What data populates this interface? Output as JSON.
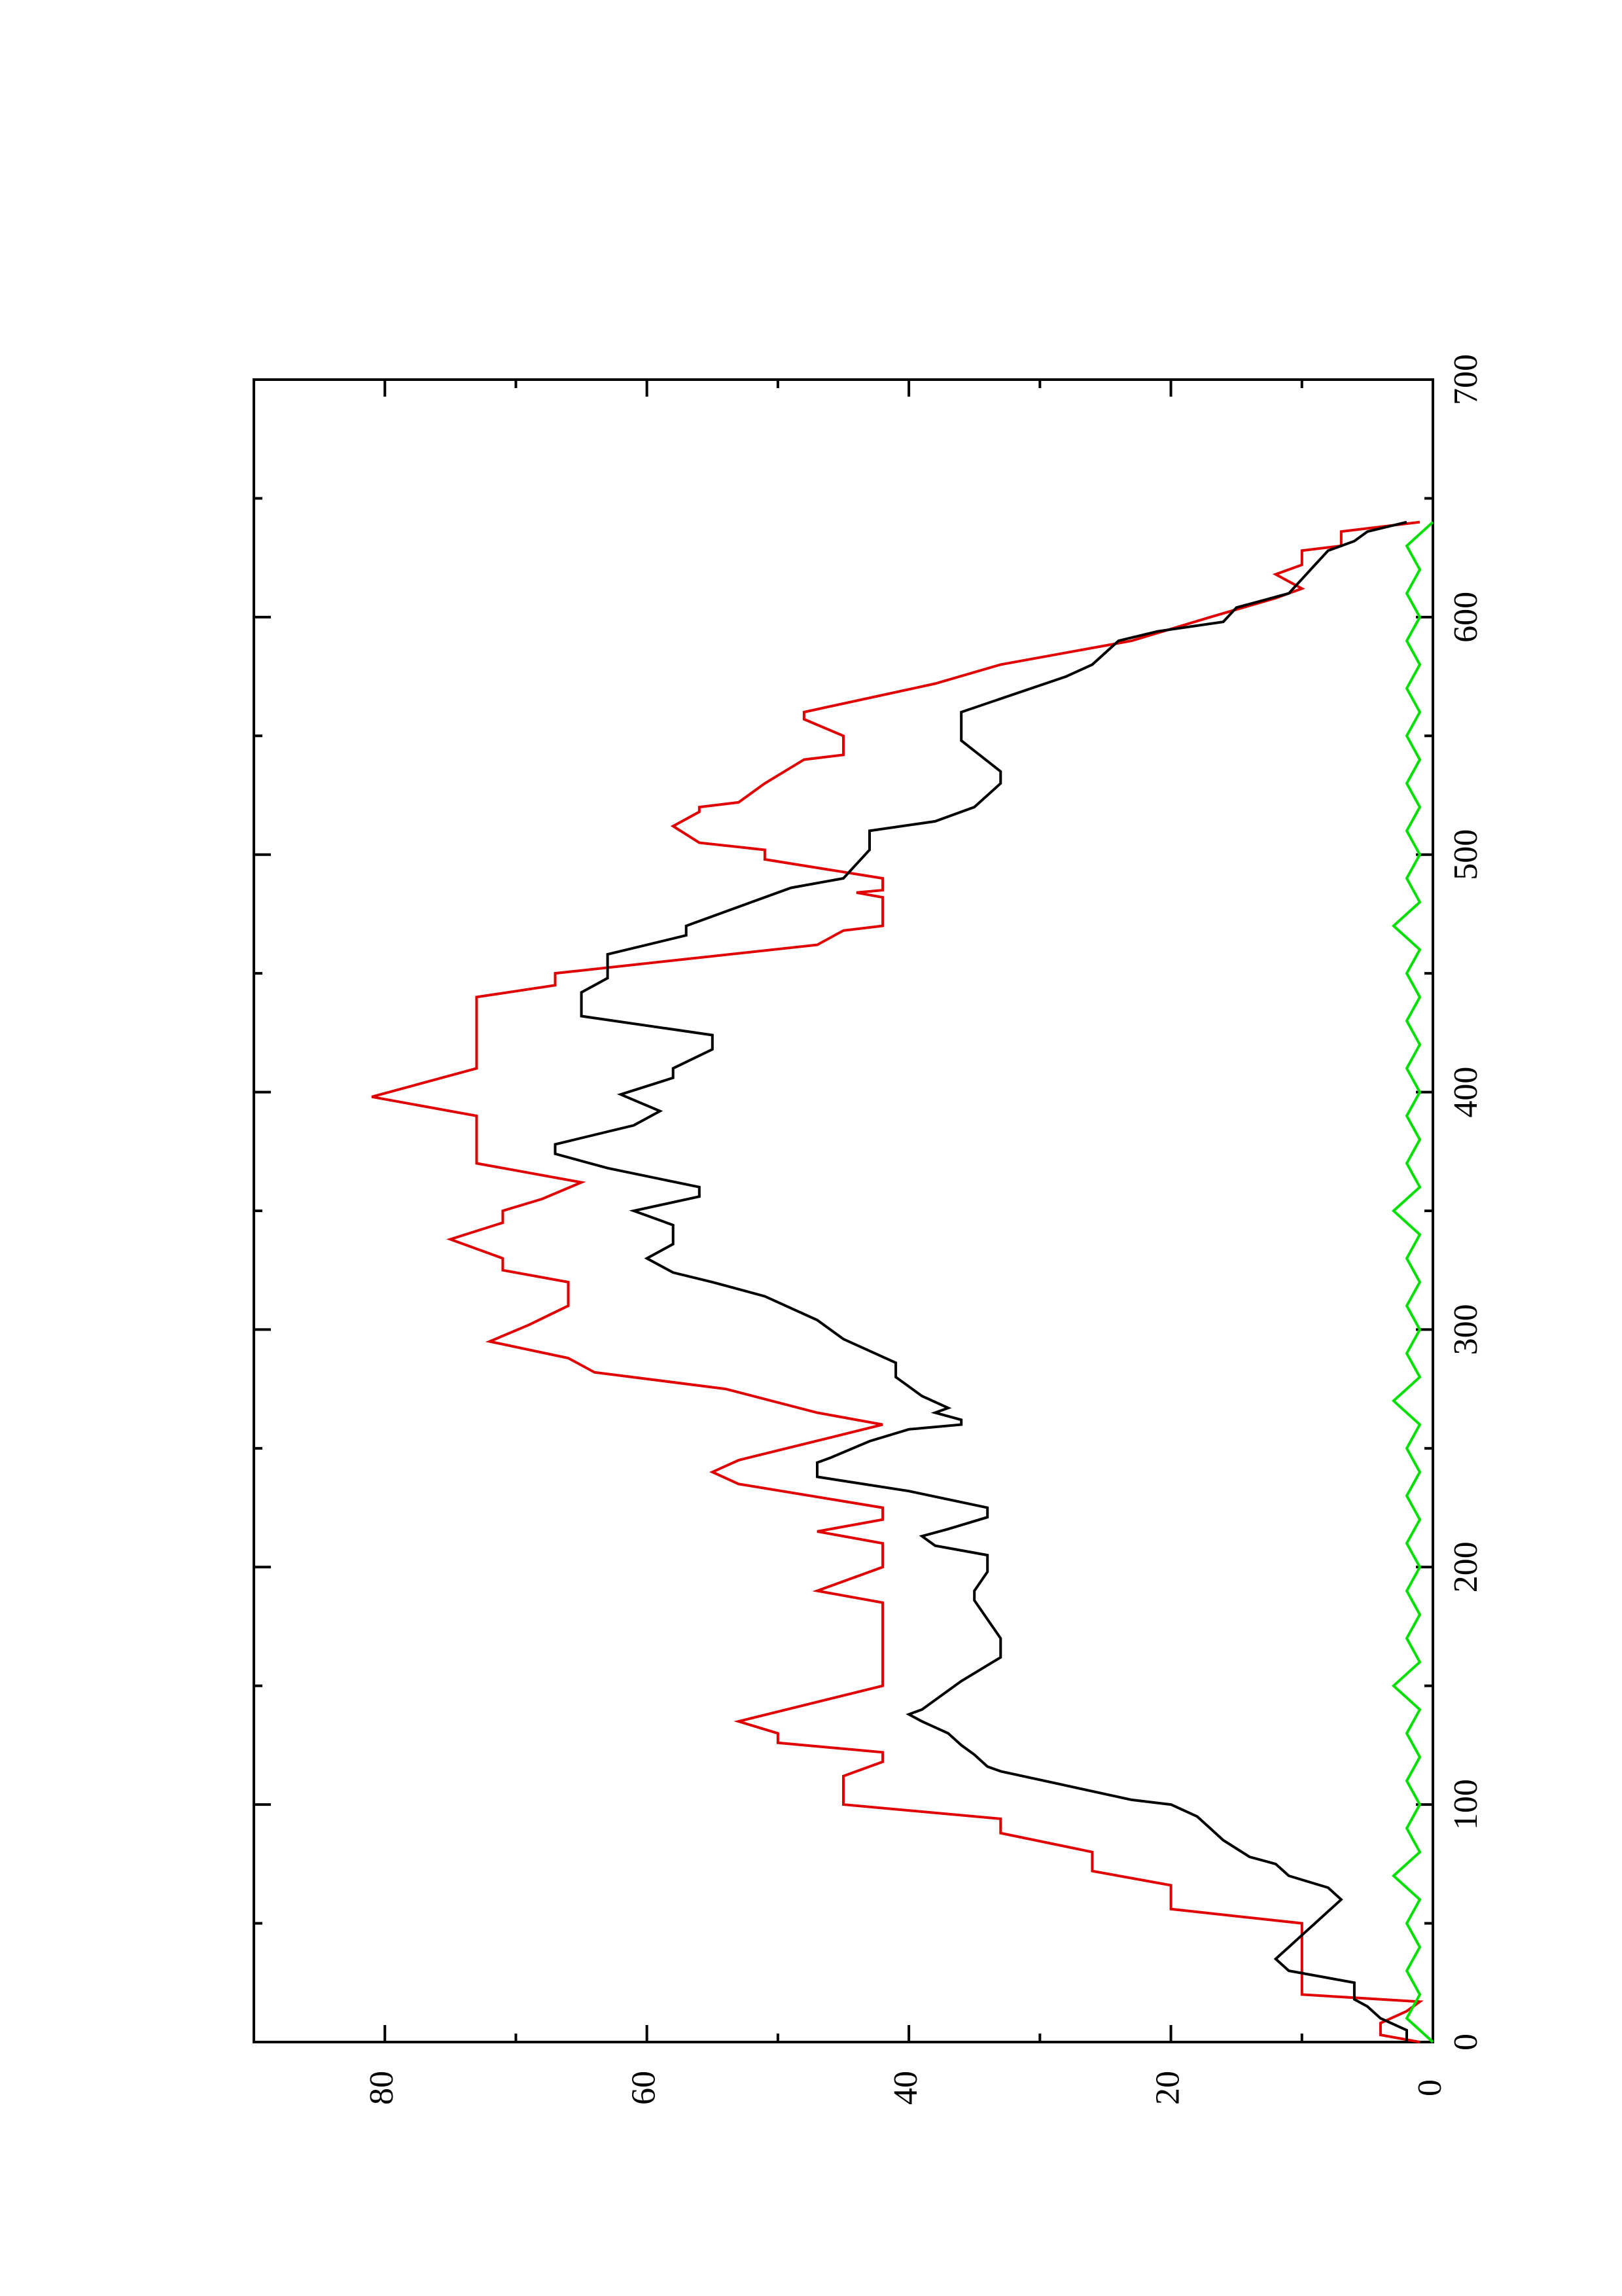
{
  "chart_data": {
    "type": "line",
    "title": "",
    "xlabel": "",
    "ylabel": "",
    "orientation": "rotated 90 degrees counter-clockwise (landscape plot on portrait page)",
    "xlim": [
      0,
      700
    ],
    "ylim": [
      0,
      90
    ],
    "x_ticks": [
      "0",
      "100",
      "200",
      "300",
      "400",
      "500",
      "600",
      "700"
    ],
    "y_ticks": [
      "0",
      "20",
      "40",
      "60",
      "80"
    ],
    "grid": false,
    "legend": "none",
    "series": [
      {
        "color": "#e00000",
        "points": [
          [
            0,
            1
          ],
          [
            3,
            4
          ],
          [
            8,
            4
          ],
          [
            13,
            2
          ],
          [
            17,
            1
          ],
          [
            20,
            10
          ],
          [
            50,
            10
          ],
          [
            56,
            20
          ],
          [
            66,
            20
          ],
          [
            72,
            26
          ],
          [
            80,
            26
          ],
          [
            88,
            33
          ],
          [
            94,
            33
          ],
          [
            100,
            45
          ],
          [
            112,
            45
          ],
          [
            118,
            42
          ],
          [
            122,
            42
          ],
          [
            126,
            50
          ],
          [
            130,
            50
          ],
          [
            135,
            53
          ],
          [
            150,
            42
          ],
          [
            185,
            42
          ],
          [
            190,
            47
          ],
          [
            200,
            42
          ],
          [
            210,
            42
          ],
          [
            215,
            47
          ],
          [
            220,
            42
          ],
          [
            225,
            42
          ],
          [
            235,
            53
          ],
          [
            240,
            55
          ],
          [
            245,
            53
          ],
          [
            260,
            42
          ],
          [
            265,
            47
          ],
          [
            275,
            54
          ],
          [
            282,
            64
          ],
          [
            288,
            66
          ],
          [
            295,
            72
          ],
          [
            302,
            69
          ],
          [
            310,
            66
          ],
          [
            320,
            66
          ],
          [
            325,
            71
          ],
          [
            330,
            71
          ],
          [
            338,
            75
          ],
          [
            345,
            71
          ],
          [
            350,
            71
          ],
          [
            355,
            68
          ],
          [
            362,
            65
          ],
          [
            370,
            73
          ],
          [
            390,
            73
          ],
          [
            398,
            81
          ],
          [
            410,
            73
          ],
          [
            440,
            73
          ],
          [
            445,
            67
          ],
          [
            450,
            67
          ],
          [
            462,
            47
          ],
          [
            468,
            45
          ],
          [
            470,
            42
          ],
          [
            482,
            42
          ],
          [
            484,
            44
          ],
          [
            485,
            42
          ],
          [
            490,
            42
          ],
          [
            498,
            51
          ],
          [
            502,
            51
          ],
          [
            505,
            56
          ],
          [
            512,
            58
          ],
          [
            518,
            56
          ],
          [
            520,
            56
          ],
          [
            522,
            53
          ],
          [
            530,
            51
          ],
          [
            540,
            48
          ],
          [
            542,
            45
          ],
          [
            550,
            45
          ],
          [
            557,
            48
          ],
          [
            560,
            48
          ],
          [
            572,
            38
          ],
          [
            580,
            33
          ],
          [
            590,
            23
          ],
          [
            595,
            20
          ],
          [
            600,
            17
          ],
          [
            608,
            12
          ],
          [
            612,
            10
          ],
          [
            618,
            12
          ],
          [
            622,
            10
          ],
          [
            628,
            10
          ],
          [
            630,
            7
          ],
          [
            636,
            7
          ],
          [
            640,
            1
          ]
        ]
      },
      {
        "color": "#000000",
        "points": [
          [
            0,
            2
          ],
          [
            5,
            2
          ],
          [
            10,
            4
          ],
          [
            15,
            5
          ],
          [
            18,
            6
          ],
          [
            25,
            6
          ],
          [
            30,
            11
          ],
          [
            35,
            12
          ],
          [
            40,
            11
          ],
          [
            45,
            10
          ],
          [
            50,
            9
          ],
          [
            55,
            8
          ],
          [
            60,
            7
          ],
          [
            65,
            8
          ],
          [
            70,
            11
          ],
          [
            75,
            12
          ],
          [
            78,
            14
          ],
          [
            85,
            16
          ],
          [
            90,
            17
          ],
          [
            95,
            18
          ],
          [
            100,
            20
          ],
          [
            102,
            23
          ],
          [
            108,
            28
          ],
          [
            114,
            33
          ],
          [
            116,
            34
          ],
          [
            121,
            35
          ],
          [
            125,
            36
          ],
          [
            130,
            37
          ],
          [
            135,
            39
          ],
          [
            138,
            40
          ],
          [
            140,
            39
          ],
          [
            152,
            36
          ],
          [
            162,
            33
          ],
          [
            170,
            33
          ],
          [
            178,
            34
          ],
          [
            186,
            35
          ],
          [
            190,
            35
          ],
          [
            198,
            34
          ],
          [
            205,
            34
          ],
          [
            209,
            38
          ],
          [
            213,
            39
          ],
          [
            216,
            37
          ],
          [
            221,
            34
          ],
          [
            225,
            34
          ],
          [
            232,
            40
          ],
          [
            238,
            47
          ],
          [
            244,
            47
          ],
          [
            246,
            46
          ],
          [
            253,
            43
          ],
          [
            258,
            40
          ],
          [
            260,
            36
          ],
          [
            262,
            36
          ],
          [
            265,
            38
          ],
          [
            267,
            37
          ],
          [
            272,
            39
          ],
          [
            280,
            41
          ],
          [
            286,
            41
          ],
          [
            296,
            45
          ],
          [
            304,
            47
          ],
          [
            314,
            51
          ],
          [
            320,
            55
          ],
          [
            324,
            58
          ],
          [
            330,
            60
          ],
          [
            336,
            58
          ],
          [
            344,
            58
          ],
          [
            350,
            61
          ],
          [
            356,
            56
          ],
          [
            360,
            56
          ],
          [
            368,
            63
          ],
          [
            374,
            67
          ],
          [
            378,
            67
          ],
          [
            386,
            61
          ],
          [
            392,
            59
          ],
          [
            399,
            62
          ],
          [
            406,
            58
          ],
          [
            410,
            58
          ],
          [
            418,
            55
          ],
          [
            424,
            55
          ],
          [
            432,
            65
          ],
          [
            442,
            65
          ],
          [
            448,
            63
          ],
          [
            453,
            63
          ],
          [
            458,
            63
          ],
          [
            466,
            57
          ],
          [
            470,
            57
          ],
          [
            480,
            52
          ],
          [
            486,
            49
          ],
          [
            490,
            45
          ],
          [
            496,
            44
          ],
          [
            502,
            43
          ],
          [
            510,
            43
          ],
          [
            514,
            38
          ],
          [
            520,
            35
          ],
          [
            530,
            33
          ],
          [
            535,
            33
          ],
          [
            548,
            36
          ],
          [
            555,
            36
          ],
          [
            560,
            36
          ],
          [
            575,
            28
          ],
          [
            580,
            26
          ],
          [
            590,
            24
          ],
          [
            594,
            21
          ],
          [
            598,
            16
          ],
          [
            604,
            15
          ],
          [
            610,
            11
          ],
          [
            616,
            10
          ],
          [
            622,
            9
          ],
          [
            628,
            8
          ],
          [
            632,
            6
          ],
          [
            636,
            5
          ],
          [
            640,
            2
          ]
        ]
      },
      {
        "color": "#00e000",
        "points": [
          [
            0,
            0
          ],
          [
            10,
            2
          ],
          [
            20,
            1
          ],
          [
            30,
            2
          ],
          [
            40,
            1
          ],
          [
            50,
            2
          ],
          [
            60,
            1
          ],
          [
            70,
            3
          ],
          [
            80,
            1
          ],
          [
            90,
            2
          ],
          [
            100,
            1
          ],
          [
            110,
            2
          ],
          [
            120,
            1
          ],
          [
            130,
            2
          ],
          [
            140,
            1
          ],
          [
            150,
            3
          ],
          [
            160,
            1
          ],
          [
            170,
            2
          ],
          [
            180,
            1
          ],
          [
            190,
            2
          ],
          [
            200,
            1
          ],
          [
            210,
            2
          ],
          [
            220,
            1
          ],
          [
            230,
            2
          ],
          [
            240,
            1
          ],
          [
            250,
            2
          ],
          [
            260,
            1
          ],
          [
            270,
            3
          ],
          [
            280,
            1
          ],
          [
            290,
            2
          ],
          [
            300,
            1
          ],
          [
            310,
            2
          ],
          [
            320,
            1
          ],
          [
            330,
            2
          ],
          [
            340,
            1
          ],
          [
            350,
            3
          ],
          [
            360,
            1
          ],
          [
            370,
            2
          ],
          [
            380,
            1
          ],
          [
            390,
            2
          ],
          [
            400,
            1
          ],
          [
            410,
            2
          ],
          [
            420,
            1
          ],
          [
            430,
            2
          ],
          [
            440,
            1
          ],
          [
            450,
            2
          ],
          [
            460,
            1
          ],
          [
            470,
            3
          ],
          [
            480,
            1
          ],
          [
            490,
            2
          ],
          [
            500,
            1
          ],
          [
            510,
            2
          ],
          [
            520,
            1
          ],
          [
            530,
            2
          ],
          [
            540,
            1
          ],
          [
            550,
            2
          ],
          [
            560,
            1
          ],
          [
            570,
            2
          ],
          [
            580,
            1
          ],
          [
            590,
            2
          ],
          [
            600,
            1
          ],
          [
            610,
            2
          ],
          [
            620,
            1
          ],
          [
            630,
            2
          ],
          [
            640,
            0
          ]
        ]
      }
    ]
  }
}
